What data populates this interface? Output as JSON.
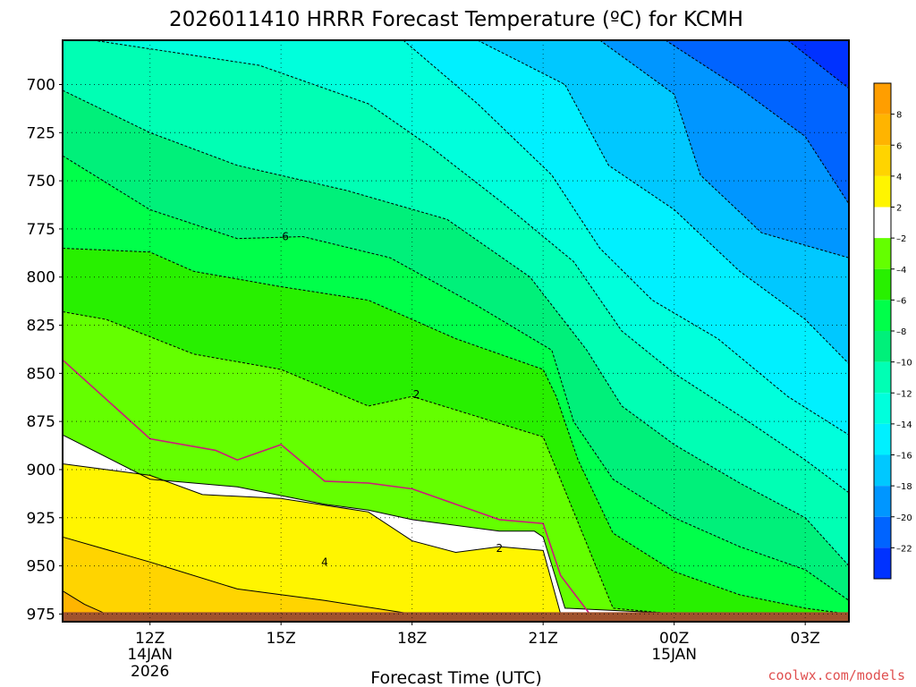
{
  "chart_data": {
    "type": "contour",
    "title": "2026011410 HRRR Forecast Temperature (ºC) for KCMH",
    "xlabel": "Forecast Time (UTC)",
    "ylabel": "",
    "credit": "coolwx.com/models",
    "x_ticks": [
      {
        "label": "12Z",
        "sub1": "14JAN",
        "sub2": "2026",
        "hour": 12
      },
      {
        "label": "15Z",
        "sub1": "",
        "sub2": "",
        "hour": 15
      },
      {
        "label": "18Z",
        "sub1": "",
        "sub2": "",
        "hour": 18
      },
      {
        "label": "21Z",
        "sub1": "",
        "sub2": "",
        "hour": 21
      },
      {
        "label": "00Z",
        "sub1": "15JAN",
        "sub2": "",
        "hour": 24
      },
      {
        "label": "03Z",
        "sub1": "",
        "sub2": "",
        "hour": 27
      }
    ],
    "x_range_hours": [
      10,
      28
    ],
    "y_ticks": [
      700,
      725,
      750,
      775,
      800,
      825,
      850,
      875,
      900,
      925,
      950,
      975
    ],
    "y_range_hpa": [
      677,
      979
    ],
    "surface_pressure_hpa": 975,
    "colorbar": {
      "labels": [
        "8",
        "6",
        "4",
        "2",
        "–2",
        "–4",
        "–6",
        "–8",
        "–10",
        "–12",
        "–14",
        "–16",
        "–18",
        "–20",
        "–22"
      ],
      "colors": [
        "#ff9e00",
        "#ffb400",
        "#ffd400",
        "#fff500",
        "#ffffff",
        "#64ff00",
        "#28f000",
        "#00ff4a",
        "#00f07a",
        "#00ffb4",
        "#00ffdc",
        "#00f0ff",
        "#00c8ff",
        "#0096ff",
        "#0064ff",
        "#0032ff"
      ]
    },
    "contour_labels": [
      {
        "text": "6",
        "hour": 15.1,
        "hpa": 779
      },
      {
        "text": "2",
        "hour": 18.1,
        "hpa": 861
      },
      {
        "text": "2",
        "hour": 20.0,
        "hpa": 941
      },
      {
        "text": "4",
        "hour": 16.0,
        "hpa": 948
      }
    ],
    "temperature_levels": [
      -22,
      -20,
      -18,
      -16,
      -14,
      -12,
      -10,
      -8,
      -6,
      -4,
      -2,
      2,
      4,
      6,
      8
    ]
  }
}
